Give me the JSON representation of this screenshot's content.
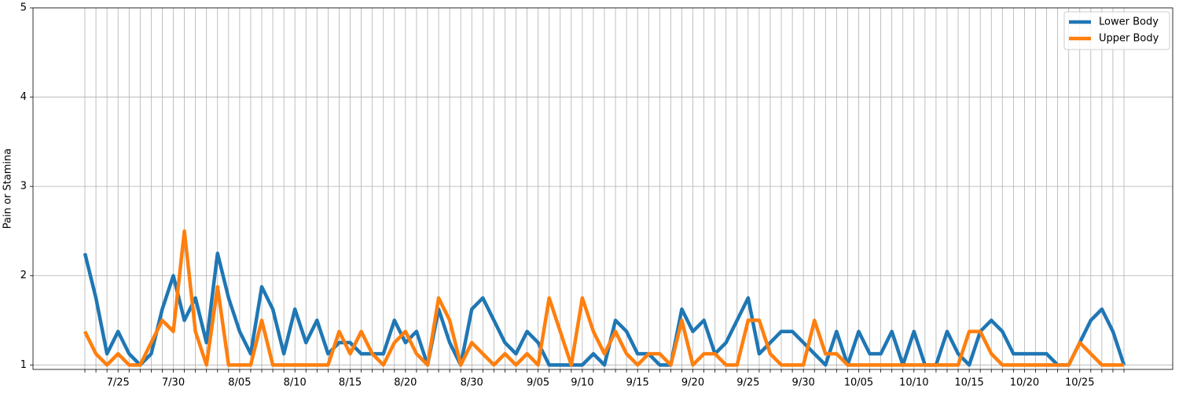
{
  "chart_data": {
    "type": "line",
    "y_label": "Pain or Stamina",
    "categories": [
      null,
      null,
      null,
      "7/25",
      null,
      null,
      null,
      null,
      "7/30",
      null,
      null,
      null,
      null,
      null,
      "8/05",
      null,
      null,
      null,
      null,
      "8/10",
      null,
      null,
      null,
      null,
      "8/15",
      null,
      null,
      null,
      null,
      "8/20",
      null,
      null,
      null,
      null,
      null,
      "8/30",
      null,
      null,
      null,
      null,
      null,
      "9/05",
      null,
      null,
      null,
      "9/10",
      null,
      null,
      null,
      null,
      "9/15",
      null,
      null,
      null,
      null,
      "9/20",
      null,
      null,
      null,
      null,
      "9/25",
      null,
      null,
      null,
      null,
      "9/30",
      null,
      null,
      null,
      null,
      "10/05",
      null,
      null,
      null,
      null,
      "10/10",
      null,
      null,
      null,
      null,
      "10/15",
      null,
      null,
      null,
      null,
      "10/20",
      null,
      null,
      null,
      null,
      "10/25",
      null,
      null,
      null,
      null
    ],
    "series": [
      {
        "name": "Lower Body",
        "color": "#1f77b4",
        "values": [
          2.25,
          1.75,
          1.125,
          1.375,
          1.125,
          1.0,
          1.125,
          1.625,
          2.0,
          1.5,
          1.75,
          1.25,
          2.25,
          1.75,
          1.375,
          1.125,
          1.875,
          1.625,
          1.125,
          1.625,
          1.25,
          1.5,
          1.125,
          1.25,
          1.25,
          1.125,
          1.125,
          1.125,
          1.5,
          1.25,
          1.375,
          1.0,
          1.625,
          1.25,
          1.0,
          1.625,
          1.75,
          1.5,
          1.25,
          1.125,
          1.375,
          1.25,
          1.0,
          1.0,
          1.0,
          1.0,
          1.125,
          1.0,
          1.5,
          1.375,
          1.125,
          1.125,
          1.0,
          1.0,
          1.625,
          1.375,
          1.5,
          1.125,
          1.25,
          1.5,
          1.75,
          1.125,
          1.25,
          1.375,
          1.375,
          1.25,
          1.125,
          1.0,
          1.375,
          1.0,
          1.375,
          1.125,
          1.125,
          1.375,
          1.0,
          1.375,
          1.0,
          1.0,
          1.375,
          1.125,
          1.0,
          1.375,
          1.5,
          1.375,
          1.125,
          1.125,
          1.125,
          1.125,
          1.0,
          1.0,
          1.25,
          1.5,
          1.625,
          1.375,
          1.0
        ]
      },
      {
        "name": "Upper Body",
        "color": "#ff7f0e",
        "values": [
          1.375,
          1.125,
          1.0,
          1.125,
          1.0,
          1.0,
          1.25,
          1.5,
          1.375,
          2.5,
          1.375,
          1.0,
          1.875,
          1.0,
          1.0,
          1.0,
          1.5,
          1.0,
          1.0,
          1.0,
          1.0,
          1.0,
          1.0,
          1.375,
          1.125,
          1.375,
          1.125,
          1.0,
          1.25,
          1.375,
          1.125,
          1.0,
          1.75,
          1.5,
          1.0,
          1.25,
          1.125,
          1.0,
          1.125,
          1.0,
          1.125,
          1.0,
          1.75,
          1.375,
          1.0,
          1.75,
          1.375,
          1.125,
          1.375,
          1.125,
          1.0,
          1.125,
          1.125,
          1.0,
          1.5,
          1.0,
          1.125,
          1.125,
          1.0,
          1.0,
          1.5,
          1.5,
          1.125,
          1.0,
          1.0,
          1.0,
          1.5,
          1.125,
          1.125,
          1.0,
          1.0,
          1.0,
          1.0,
          1.0,
          1.0,
          1.0,
          1.0,
          1.0,
          1.0,
          1.0,
          1.375,
          1.375,
          1.125,
          1.0,
          1.0,
          1.0,
          1.0,
          1.0,
          1.0,
          1.0,
          1.25,
          1.125,
          1.0,
          1.0,
          1.0
        ]
      }
    ],
    "ylim": [
      0.95,
      5
    ],
    "yticks": [
      1,
      2,
      3,
      4,
      5
    ],
    "grid": true,
    "legend": "upper right"
  }
}
